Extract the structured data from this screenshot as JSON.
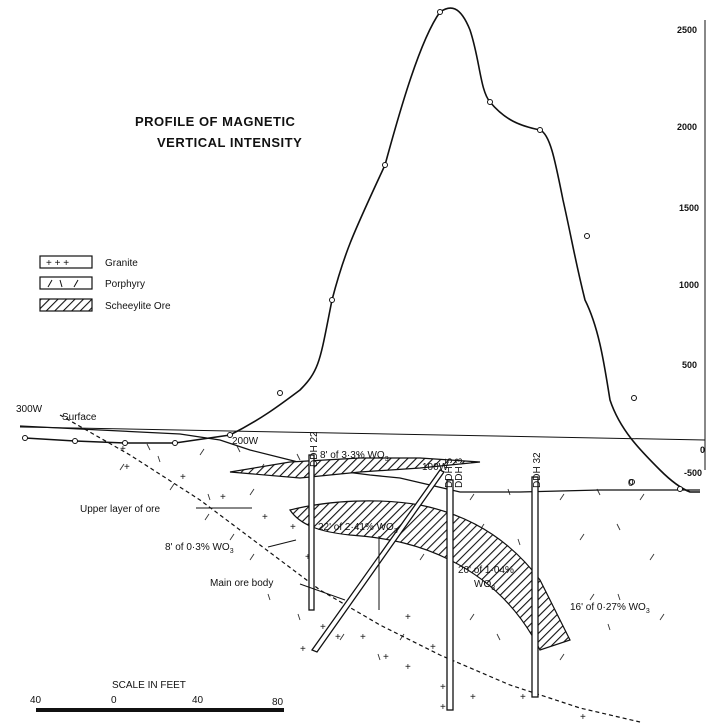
{
  "title_line1": "PROFILE OF MAGNETIC",
  "title_line2": "VERTICAL INTENSITY",
  "legend": {
    "granite": "Granite",
    "porphyry": "Porphyry",
    "ore": "Scheeylite Ore"
  },
  "axis_ticks": [
    "2500",
    "2000",
    "1500",
    "1000",
    "500",
    "0",
    "-500"
  ],
  "station_labels": {
    "w300": "300W",
    "surface": "Surface",
    "w200": "200W",
    "w100": "100W"
  },
  "drill_holes": {
    "ddh22": "DDH 22",
    "ddh5": "DDH 5",
    "ddh3": "DDH 3",
    "ddh32": "DDH 32"
  },
  "zero_marker": "0",
  "annotations": {
    "a1_pre": "8' of 3·3% WO",
    "a1_sub": "3",
    "upper_layer": "Upper layer of ore",
    "a2_pre": "22' of 2·41% WO",
    "a2_sub": "3",
    "a3_pre": "8' of 0·3% WO",
    "a3_sub": "3",
    "a4_line1": "20' of 1·04%",
    "a4_pre": "WO",
    "a4_sub": "3",
    "main_ore": "Main ore body",
    "a5_pre": "16' of 0·27% WO",
    "a5_sub": "3"
  },
  "scale": {
    "title": "SCALE IN FEET",
    "ticks": [
      "40",
      "0",
      "40",
      "80"
    ]
  }
}
